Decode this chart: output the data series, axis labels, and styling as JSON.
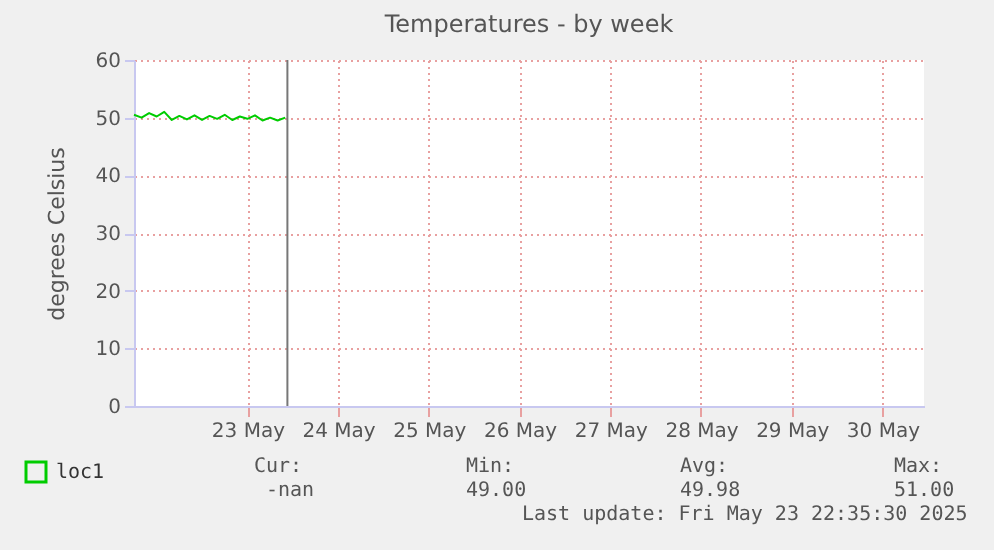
{
  "chart_data": {
    "type": "line",
    "title": "Temperatures - by week",
    "ylabel": "degrees Celsius",
    "x": [
      "2025-05-22T06:00",
      "2025-05-22T08:00",
      "2025-05-22T10:00",
      "2025-05-22T12:00",
      "2025-05-22T14:00",
      "2025-05-22T16:00",
      "2025-05-22T18:00",
      "2025-05-22T20:00",
      "2025-05-22T22:00",
      "2025-05-23T00:00",
      "2025-05-23T02:00",
      "2025-05-23T04:00",
      "2025-05-23T06:00",
      "2025-05-23T08:00",
      "2025-05-23T10:00",
      "2025-05-23T12:00",
      "2025-05-23T14:00",
      "2025-05-23T16:00",
      "2025-05-23T18:00",
      "2025-05-23T20:00",
      "2025-05-23T22:00"
    ],
    "series": [
      {
        "name": "loc1",
        "color": "#00cc00",
        "values": [
          50.5,
          50.0,
          50.8,
          50.2,
          51.0,
          49.6,
          50.3,
          49.7,
          50.4,
          49.6,
          50.3,
          49.8,
          50.5,
          49.6,
          50.2,
          49.8,
          50.4,
          49.5,
          50.0,
          49.5,
          50.0
        ]
      }
    ],
    "xlim": [
      "2025-05-22T06:00",
      "2025-05-30T23:00"
    ],
    "xticks": [
      {
        "value": "2025-05-23T12:00",
        "label": "23 May"
      },
      {
        "value": "2025-05-24T12:00",
        "label": "24 May"
      },
      {
        "value": "2025-05-25T12:00",
        "label": "25 May"
      },
      {
        "value": "2025-05-26T12:00",
        "label": "26 May"
      },
      {
        "value": "2025-05-27T12:00",
        "label": "27 May"
      },
      {
        "value": "2025-05-28T12:00",
        "label": "28 May"
      },
      {
        "value": "2025-05-29T12:00",
        "label": "29 May"
      },
      {
        "value": "2025-05-30T12:00",
        "label": "30 May"
      }
    ],
    "ylim": [
      0,
      60
    ],
    "yticks": [
      0,
      10,
      20,
      30,
      40,
      50,
      60
    ],
    "ref_lines": [
      {
        "axis": "x",
        "value": "2025-05-23T22:35",
        "color": "#777777"
      }
    ],
    "grid": true,
    "legend": "bottom left",
    "annotations": [
      "Cur:",
      "Min:",
      "Avg:",
      "Max:",
      "-nan",
      "49.00",
      "49.98",
      "51.00",
      "Last update: Fri May 23 22:35:30 2025"
    ]
  }
}
